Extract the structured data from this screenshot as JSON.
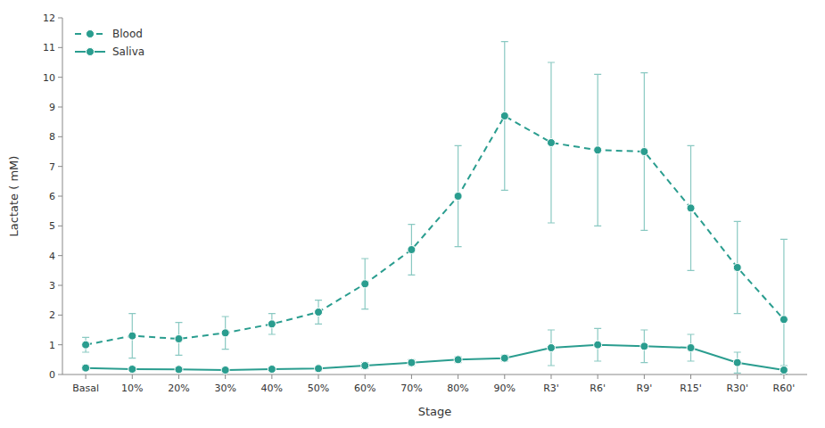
{
  "chart_data": {
    "type": "line",
    "x_label": "Stage",
    "y_label": "Lactate ( mM)",
    "categories": [
      "Basal",
      "10%",
      "20%",
      "30%",
      "40%",
      "50%",
      "60%",
      "70%",
      "80%",
      "90%",
      "R3'",
      "R6'",
      "R9'",
      "R15'",
      "R30'",
      "R60'"
    ],
    "series": [
      {
        "name": "Blood",
        "color": "#2a9d8f",
        "line_style": "dashed",
        "marker": "circle",
        "values": [
          1.0,
          1.3,
          1.2,
          1.4,
          1.7,
          2.1,
          3.05,
          4.2,
          6.0,
          8.7,
          7.8,
          7.55,
          7.5,
          5.6,
          3.6,
          1.85
        ],
        "error_up": [
          0.25,
          0.75,
          0.55,
          0.55,
          0.35,
          0.4,
          0.85,
          0.85,
          1.7,
          2.5,
          2.7,
          2.55,
          2.65,
          2.1,
          1.55,
          2.7
        ],
        "error_down": [
          0.25,
          0.75,
          0.55,
          0.55,
          0.35,
          0.4,
          0.85,
          0.85,
          1.7,
          2.5,
          2.7,
          2.55,
          2.65,
          2.1,
          1.55,
          1.85
        ]
      },
      {
        "name": "Saliva",
        "color": "#2a9d8f",
        "line_style": "solid",
        "marker": "circle",
        "values": [
          0.22,
          0.18,
          0.17,
          0.15,
          0.18,
          0.2,
          0.3,
          0.4,
          0.5,
          0.55,
          0.9,
          1.0,
          0.95,
          0.9,
          0.4,
          0.15
        ],
        "error_up": [
          0.08,
          0.07,
          0.06,
          0.06,
          0.06,
          0.07,
          0.1,
          0.1,
          0.1,
          0.1,
          0.6,
          0.55,
          0.55,
          0.45,
          0.35,
          0.15
        ],
        "error_down": [
          0.08,
          0.07,
          0.06,
          0.06,
          0.06,
          0.07,
          0.1,
          0.1,
          0.1,
          0.1,
          0.6,
          0.55,
          0.55,
          0.45,
          0.35,
          0.15
        ]
      }
    ],
    "ylim": [
      0,
      12
    ],
    "yticks": [
      0,
      1,
      2,
      3,
      4,
      5,
      6,
      7,
      8,
      9,
      10,
      11,
      12
    ],
    "grid": false,
    "legend": "upper left"
  }
}
